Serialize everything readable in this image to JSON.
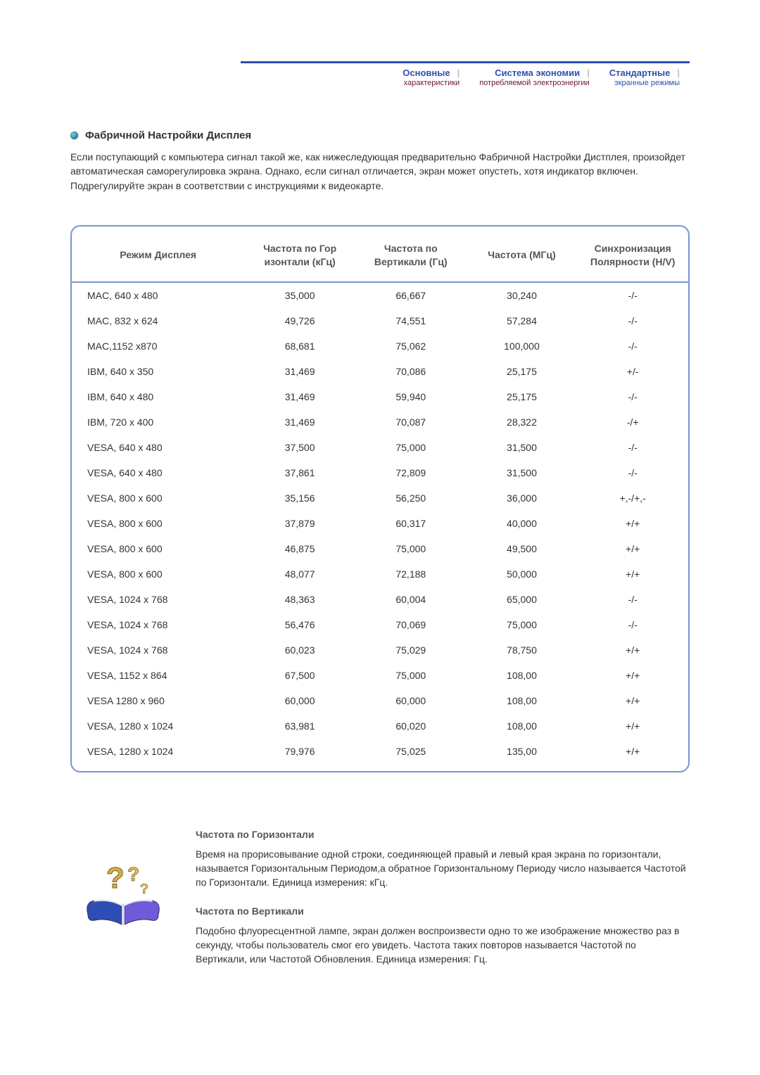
{
  "colors": {
    "accent": "#2f4eb3",
    "maroon": "#6b1b2a",
    "tableBorder": "#7995d3",
    "textMain": "#333333",
    "textMuted": "#555555",
    "background": "#ffffff"
  },
  "tabs": {
    "t1": {
      "title": "Основные",
      "sub": "характеристики"
    },
    "t2": {
      "title": "Система экономии",
      "sub": "потребляемой электроэнергии"
    },
    "t3": {
      "title": "Стандартные",
      "sub": "экранные режимы"
    }
  },
  "section": {
    "title": "Фабричной Настройки Дисплея",
    "intro": "Если поступающий с компьютера сигнал такой же, как нижеследующая предварительно Фабричной Настройки Дистплея, произойдет автоматическая саморегулировка экрана. Однако, если сигнал отличается, экран может опустеть, хотя индикатор включен. Подрегулируйте экран в соответствии с инструкциями к видеокарте."
  },
  "table": {
    "headers": {
      "mode": "Режим Дисплея",
      "hfreq": "Частота по Гор изонтали (кГц)",
      "vfreq": "Частота по Вертикали (Гц)",
      "pclk": "Частота (МГц)",
      "sync": "Синхронизация Полярности (H/V)"
    },
    "colWidths": [
      "28%",
      "18%",
      "18%",
      "18%",
      "18%"
    ],
    "rows": [
      {
        "mode": "MAC, 640 x 480",
        "h": "35,000",
        "v": "66,667",
        "p": "30,240",
        "s": "-/-"
      },
      {
        "mode": "MAC, 832 x 624",
        "h": "49,726",
        "v": "74,551",
        "p": "57,284",
        "s": "-/-"
      },
      {
        "mode": "MAC,1152 x870",
        "h": "68,681",
        "v": "75,062",
        "p": "100,000",
        "s": "-/-"
      },
      {
        "mode": "IBM, 640 x 350",
        "h": "31,469",
        "v": "70,086",
        "p": "25,175",
        "s": "+/-"
      },
      {
        "mode": "IBM, 640 x 480",
        "h": "31,469",
        "v": "59,940",
        "p": "25,175",
        "s": "-/-"
      },
      {
        "mode": "IBM, 720 x 400",
        "h": "31,469",
        "v": "70,087",
        "p": "28,322",
        "s": "-/+"
      },
      {
        "mode": "VESA, 640 x 480",
        "h": "37,500",
        "v": "75,000",
        "p": "31,500",
        "s": "-/-"
      },
      {
        "mode": "VESA, 640 x 480",
        "h": "37,861",
        "v": "72,809",
        "p": "31,500",
        "s": "-/-"
      },
      {
        "mode": "VESA, 800 x 600",
        "h": "35,156",
        "v": "56,250",
        "p": "36,000",
        "s": "+,-/+,-"
      },
      {
        "mode": "VESA, 800 x 600",
        "h": "37,879",
        "v": "60,317",
        "p": "40,000",
        "s": "+/+"
      },
      {
        "mode": "VESA, 800 x 600",
        "h": "46,875",
        "v": "75,000",
        "p": "49,500",
        "s": "+/+"
      },
      {
        "mode": "VESA, 800 x 600",
        "h": "48,077",
        "v": "72,188",
        "p": "50,000",
        "s": "+/+"
      },
      {
        "mode": "VESA, 1024 x 768",
        "h": "48,363",
        "v": "60,004",
        "p": "65,000",
        "s": "-/-"
      },
      {
        "mode": "VESA, 1024 x 768",
        "h": "56,476",
        "v": "70,069",
        "p": "75,000",
        "s": "-/-"
      },
      {
        "mode": "VESA, 1024 x 768",
        "h": "60,023",
        "v": "75,029",
        "p": "78,750",
        "s": "+/+"
      },
      {
        "mode": "VESA, 1152 x 864",
        "h": "67,500",
        "v": "75,000",
        "p": "108,00",
        "s": "+/+"
      },
      {
        "mode": "VESA 1280 x 960",
        "h": "60,000",
        "v": "60,000",
        "p": "108,00",
        "s": "+/+"
      },
      {
        "mode": "VESA, 1280 x 1024",
        "h": "63,981",
        "v": "60,020",
        "p": "108,00",
        "s": "+/+"
      },
      {
        "mode": "VESA, 1280 x 1024",
        "h": "79,976",
        "v": "75,025",
        "p": "135,00",
        "s": "+/+"
      }
    ]
  },
  "defs": {
    "h_title": "Частота по Горизонтали",
    "h_body": "Время на прорисовывание одной строки, соединяющей правый и левый края экрана по горизонтали, называется Горизонтальным Периодом,а обратное Горизонтальному Периоду число называется Частотой по Горизонтали. Единица измерения: кГц.",
    "v_title": "Частота по Вертикали",
    "v_body": "Подобно флуоресцентной лампе, экран должен воспроизвести одно то же изображение множество раз в секунду, чтобы пользователь смог его увидеть. Частота таких повторов называется Частотой по Вертикали, или Частотой Обновления. Единица измерения: Гц."
  }
}
